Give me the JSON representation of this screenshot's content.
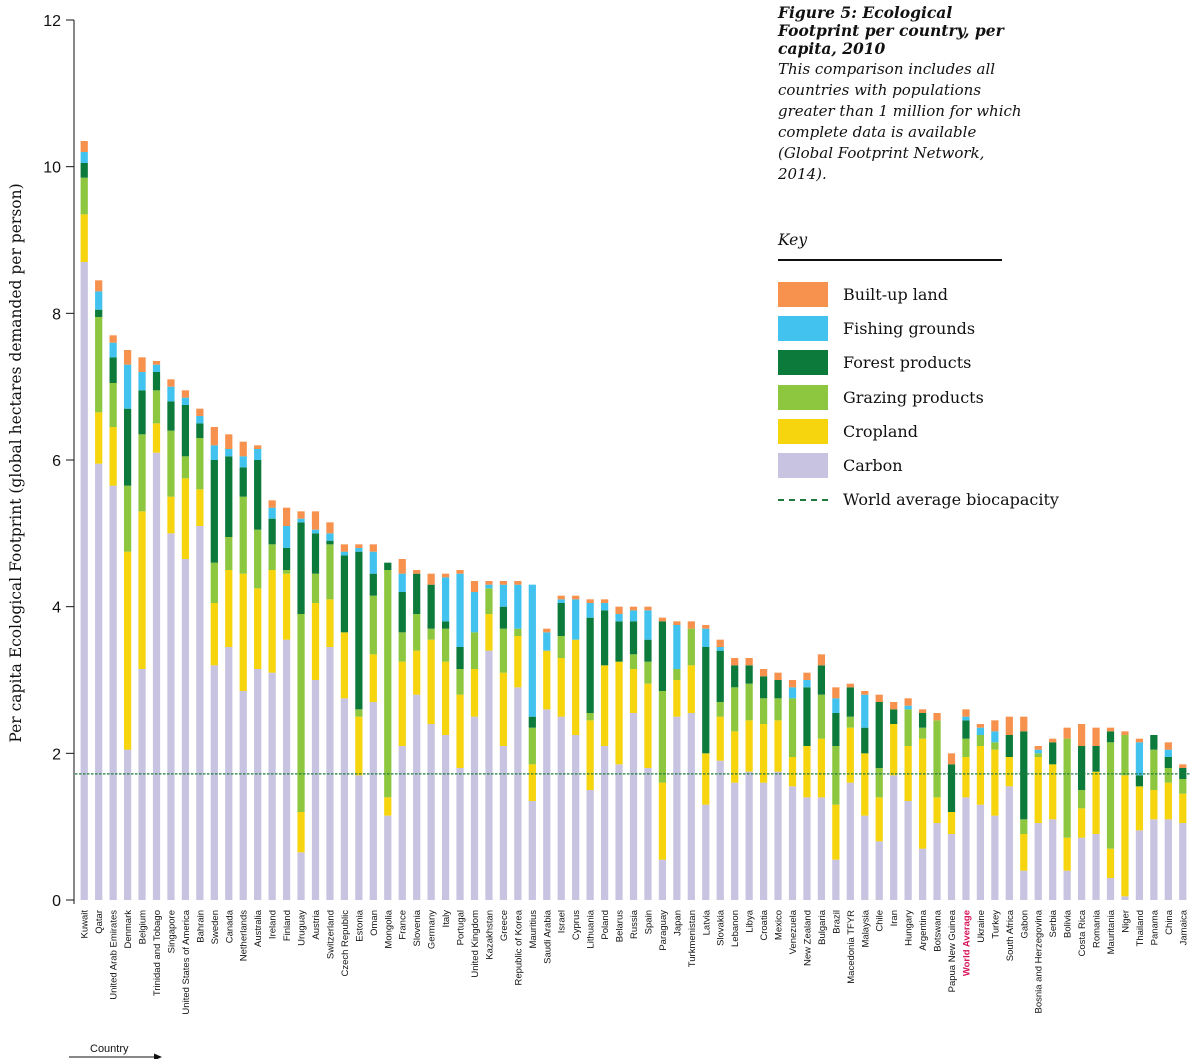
{
  "chart_data": {
    "type": "bar",
    "stacked": true,
    "title": "Figure 5: Ecological Footprint per country, per capita, 2010",
    "subtitle": "This comparison includes all countries with populations greater than 1 million for which complete data is available (Global Footprint Network, 2014).",
    "ylabel": "Per capita Ecological Footprint (global hectares demanded per person)",
    "xlabel": "Country",
    "ylim": [
      0,
      12
    ],
    "yticks": [
      "0",
      "2",
      "4",
      "6",
      "8",
      "10",
      "12"
    ],
    "grid": false,
    "legend_position": "top-right",
    "highlight_category": "World Average",
    "world_average_biocapacity": 1.72,
    "categories": [
      "Kuwait",
      "Qatar",
      "United Arab Emirates",
      "Denmark",
      "Belgium",
      "Trinidad and Tobago",
      "Singapore",
      "United States of America",
      "Bahrain",
      "Sweden",
      "Canada",
      "Netherlands",
      "Australia",
      "Ireland",
      "Finland",
      "Uruguay",
      "Austria",
      "Switzerland",
      "Czech Republic",
      "Estonia",
      "Oman",
      "Mongolia",
      "France",
      "Slovenia",
      "Germany",
      "Italy",
      "Portugal",
      "United Kingdom",
      "Kazakhstan",
      "Greece",
      "Republic of Korea",
      "Mauritius",
      "Saudi Arabia",
      "Israel",
      "Cyprus",
      "Lithuania",
      "Poland",
      "Belarus",
      "Russia",
      "Spain",
      "Paraguay",
      "Japan",
      "Turkmenistan",
      "Latvia",
      "Slovakia",
      "Lebanon",
      "Libya",
      "Croatia",
      "Mexico",
      "Venezuela",
      "New Zealand",
      "Bulgaria",
      "Brazil",
      "Macedonia TFYR",
      "Malaysia",
      "Chile",
      "Iran",
      "Hungary",
      "Argentina",
      "Botswana",
      "Papua New Guinea",
      "World Average",
      "Ukraine",
      "Turkey",
      "South Africa",
      "Gabon",
      "Bosnia and Herzegovina",
      "Serbia",
      "Bolivia",
      "Costa Rica",
      "Romania",
      "Mauritania",
      "Niger",
      "Thailand",
      "Panama",
      "China",
      "Jamaica"
    ],
    "series": [
      {
        "name": "Carbon",
        "color": "#c7c3e0",
        "values": [
          8.7,
          5.95,
          5.65,
          2.05,
          3.15,
          6.1,
          5.0,
          4.65,
          5.1,
          3.2,
          3.45,
          2.85,
          3.15,
          3.1,
          3.55,
          0.65,
          3.0,
          3.45,
          2.75,
          1.7,
          2.7,
          1.15,
          2.1,
          2.8,
          2.4,
          2.25,
          1.8,
          2.5,
          3.4,
          2.1,
          2.9,
          1.35,
          2.6,
          2.5,
          2.25,
          1.5,
          2.1,
          1.85,
          2.55,
          1.8,
          0.55,
          2.5,
          2.55,
          1.3,
          1.9,
          1.6,
          1.75,
          1.6,
          1.75,
          1.55,
          1.4,
          1.4,
          0.55,
          1.6,
          1.15,
          0.8,
          1.7,
          1.35,
          0.7,
          1.05,
          0.9,
          1.4,
          1.3,
          1.15,
          1.55,
          0.4,
          1.05,
          1.1,
          0.4,
          0.85,
          0.9,
          0.3,
          0.05,
          0.95,
          1.1,
          1.1,
          1.05
        ]
      },
      {
        "name": "Cropland",
        "color": "#f6d40e",
        "values": [
          0.65,
          0.7,
          0.8,
          2.7,
          2.15,
          0.4,
          0.5,
          1.1,
          0.5,
          0.85,
          1.05,
          1.6,
          1.1,
          1.4,
          0.9,
          0.55,
          1.05,
          0.65,
          0.9,
          0.8,
          0.65,
          0.25,
          1.15,
          0.6,
          1.15,
          1.0,
          1.0,
          0.65,
          0.5,
          1.0,
          0.7,
          0.5,
          0.8,
          0.8,
          1.3,
          0.95,
          1.1,
          1.4,
          0.6,
          1.15,
          1.05,
          0.5,
          0.65,
          0.7,
          0.6,
          0.7,
          0.7,
          0.8,
          0.7,
          0.4,
          0.7,
          0.8,
          0.75,
          0.75,
          0.85,
          0.6,
          0.7,
          0.75,
          1.5,
          0.35,
          0.3,
          0.55,
          0.8,
          0.9,
          0.4,
          0.5,
          0.9,
          0.75,
          0.45,
          0.4,
          0.85,
          0.4,
          1.65,
          0.6,
          0.4,
          0.5,
          0.4
        ]
      },
      {
        "name": "Grazing products",
        "color": "#8dc73f",
        "values": [
          0.5,
          1.3,
          0.6,
          0.9,
          1.05,
          0.45,
          0.9,
          0.3,
          0.7,
          0.55,
          0.45,
          1.05,
          0.8,
          0.35,
          0.05,
          2.7,
          0.4,
          0.75,
          0.0,
          0.1,
          0.8,
          3.1,
          0.4,
          0.5,
          0.15,
          0.45,
          0.35,
          0.5,
          0.35,
          0.6,
          0.1,
          0.5,
          0.0,
          0.3,
          0.0,
          0.1,
          0.0,
          0.0,
          0.2,
          0.3,
          1.25,
          0.15,
          0.5,
          0.0,
          0.2,
          0.6,
          0.5,
          0.35,
          0.3,
          0.8,
          0.0,
          0.6,
          0.8,
          0.15,
          0.0,
          0.4,
          0.0,
          0.5,
          0.15,
          1.05,
          0.0,
          0.25,
          0.15,
          0.1,
          0.0,
          0.2,
          0.05,
          0.0,
          1.35,
          0.25,
          0.0,
          1.45,
          0.55,
          0.0,
          0.55,
          0.2,
          0.2
        ]
      },
      {
        "name": "Forest products",
        "color": "#0b7a3b",
        "values": [
          0.2,
          0.1,
          0.35,
          1.05,
          0.6,
          0.25,
          0.4,
          0.7,
          0.2,
          1.4,
          1.1,
          0.4,
          0.95,
          0.35,
          0.3,
          1.25,
          0.55,
          0.05,
          1.05,
          2.15,
          0.3,
          0.1,
          0.55,
          0.55,
          0.6,
          0.1,
          0.3,
          0.0,
          0.0,
          0.3,
          0.0,
          0.15,
          0.0,
          0.45,
          0.0,
          1.3,
          0.75,
          0.55,
          0.45,
          0.3,
          0.95,
          0.0,
          0.0,
          1.45,
          0.7,
          0.3,
          0.25,
          0.3,
          0.25,
          0.0,
          0.8,
          0.4,
          0.45,
          0.4,
          0.35,
          0.9,
          0.2,
          0.0,
          0.2,
          0.0,
          0.65,
          0.25,
          0.0,
          0.0,
          0.3,
          1.2,
          0.0,
          0.3,
          0.0,
          0.6,
          0.35,
          0.15,
          0.0,
          0.15,
          0.2,
          0.15,
          0.15
        ]
      },
      {
        "name": "Fishing grounds",
        "color": "#41c2ef",
        "values": [
          0.15,
          0.25,
          0.2,
          0.6,
          0.25,
          0.1,
          0.2,
          0.1,
          0.1,
          0.2,
          0.1,
          0.15,
          0.15,
          0.15,
          0.3,
          0.05,
          0.05,
          0.1,
          0.05,
          0.05,
          0.3,
          0.0,
          0.25,
          0.0,
          0.0,
          0.6,
          1.0,
          0.55,
          0.05,
          0.3,
          0.6,
          1.8,
          0.25,
          0.05,
          0.55,
          0.2,
          0.1,
          0.1,
          0.15,
          0.4,
          0.0,
          0.6,
          0.0,
          0.25,
          0.05,
          0.0,
          0.0,
          0.0,
          0.0,
          0.15,
          0.1,
          0.0,
          0.2,
          0.0,
          0.45,
          0.0,
          0.0,
          0.05,
          0.0,
          0.0,
          0.0,
          0.05,
          0.1,
          0.15,
          0.0,
          0.0,
          0.05,
          0.0,
          0.0,
          0.0,
          0.0,
          0.0,
          0.0,
          0.45,
          0.0,
          0.1,
          0.0
        ]
      },
      {
        "name": "Built-up land",
        "color": "#f7914e",
        "values": [
          0.15,
          0.15,
          0.1,
          0.2,
          0.2,
          0.05,
          0.1,
          0.1,
          0.1,
          0.25,
          0.2,
          0.2,
          0.05,
          0.1,
          0.25,
          0.1,
          0.25,
          0.15,
          0.1,
          0.05,
          0.1,
          0.0,
          0.2,
          0.05,
          0.15,
          0.05,
          0.05,
          0.15,
          0.05,
          0.05,
          0.05,
          0.0,
          0.05,
          0.05,
          0.05,
          0.05,
          0.05,
          0.1,
          0.05,
          0.05,
          0.05,
          0.05,
          0.1,
          0.05,
          0.1,
          0.1,
          0.1,
          0.1,
          0.1,
          0.1,
          0.1,
          0.15,
          0.15,
          0.05,
          0.05,
          0.1,
          0.1,
          0.1,
          0.05,
          0.1,
          0.15,
          0.1,
          0.05,
          0.15,
          0.25,
          0.2,
          0.05,
          0.05,
          0.15,
          0.3,
          0.25,
          0.05,
          0.05,
          0.05,
          0.0,
          0.1,
          0.05
        ]
      }
    ],
    "legend": [
      {
        "label": "Built-up land",
        "color": "#f7914e"
      },
      {
        "label": "Fishing grounds",
        "color": "#41c2ef"
      },
      {
        "label": "Forest products",
        "color": "#0b7a3b"
      },
      {
        "label": "Grazing products",
        "color": "#8dc73f"
      },
      {
        "label": "Cropland",
        "color": "#f6d40e"
      },
      {
        "label": "Carbon",
        "color": "#c7c3e0"
      },
      {
        "label": "World average biocapacity",
        "color": "#1e7a3c",
        "style": "dashed"
      }
    ]
  },
  "key_title": "Key"
}
